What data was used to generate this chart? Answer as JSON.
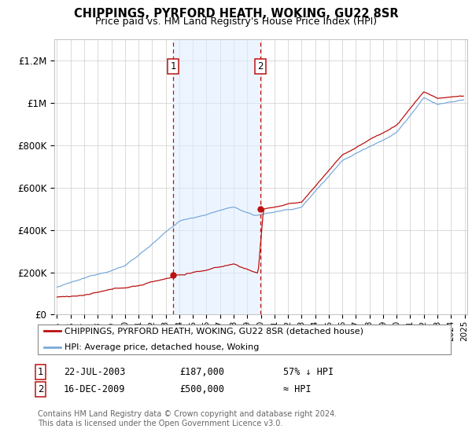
{
  "title": "CHIPPINGS, PYRFORD HEATH, WOKING, GU22 8SR",
  "subtitle": "Price paid vs. HM Land Registry's House Price Index (HPI)",
  "ylabel_ticks": [
    "£0",
    "£200K",
    "£400K",
    "£600K",
    "£800K",
    "£1M",
    "£1.2M"
  ],
  "ytick_values": [
    0,
    200000,
    400000,
    600000,
    800000,
    1000000,
    1200000
  ],
  "ylim": [
    0,
    1300000
  ],
  "xlim_start": 1994.8,
  "xlim_end": 2025.2,
  "hpi_color": "#7aaadd",
  "price_color": "#bb1111",
  "marker1_date": 2003.55,
  "marker1_price": 187000,
  "marker2_date": 2009.96,
  "marker2_price": 500000,
  "shade_color": "#ddeeff",
  "shade_alpha": 0.55,
  "legend_label1": "CHIPPINGS, PYRFORD HEATH, WOKING, GU22 8SR (detached house)",
  "legend_label2": "HPI: Average price, detached house, Woking",
  "footer1": "Contains HM Land Registry data © Crown copyright and database right 2024.",
  "footer2": "This data is licensed under the Open Government Licence v3.0.",
  "table_row1_num": "1",
  "table_row1_date": "22-JUL-2003",
  "table_row1_price": "£187,000",
  "table_row1_hpi": "57% ↓ HPI",
  "table_row2_num": "2",
  "table_row2_date": "16-DEC-2009",
  "table_row2_price": "£500,000",
  "table_row2_hpi": "≈ HPI"
}
